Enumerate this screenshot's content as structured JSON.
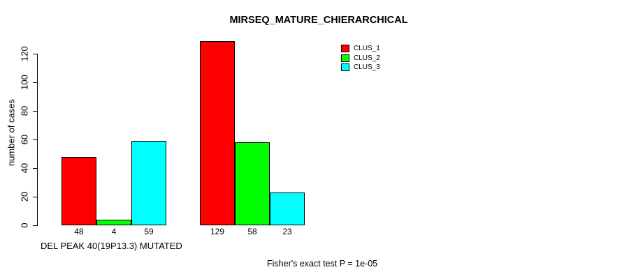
{
  "chart_data": {
    "type": "bar",
    "title": "MIRSEQ_MATURE_CHIERARCHICAL",
    "xlabel": "DEL PEAK 40(19P13.3) MUTATED",
    "ylabel": "number of cases",
    "categories": [
      "",
      ""
    ],
    "series": [
      {
        "name": "CLUS_1",
        "color": "#ff0000",
        "values": [
          48,
          129
        ]
      },
      {
        "name": "CLUS_2",
        "color": "#00ff00",
        "values": [
          4,
          58
        ]
      },
      {
        "name": "CLUS_3",
        "color": "#00ffff",
        "values": [
          59,
          23
        ]
      }
    ],
    "bar_value_labels_shown": true,
    "yticks": [
      0,
      20,
      40,
      60,
      80,
      100,
      120
    ],
    "ylim": [
      0,
      132
    ],
    "grid": false,
    "legend_position": "top-right",
    "annotation": "Fisher's exact test P = 1e-05"
  },
  "colors": {
    "foreground": "#000000",
    "background": "#ffffff",
    "clus_1": "#ff0000",
    "clus_2": "#00ff00",
    "clus_3": "#00ffff"
  }
}
